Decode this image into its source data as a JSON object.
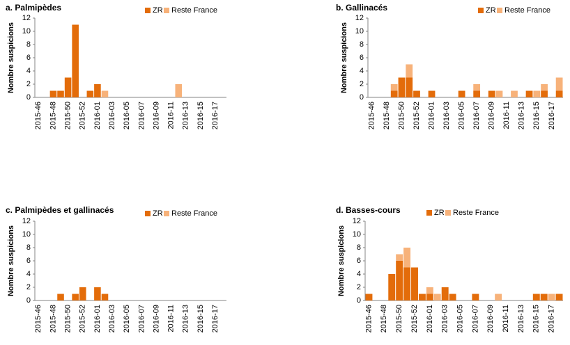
{
  "chart_data": [
    {
      "type": "bar",
      "stacked": true,
      "title": "a. Palmipèdes",
      "y_label": "Nombre suspicions",
      "categories": [
        "2015-46",
        null,
        "2015-48",
        null,
        "2015-50",
        null,
        "2015-52",
        null,
        "2016-01",
        null,
        "2016-03",
        null,
        "2016-05",
        null,
        "2016-07",
        null,
        "2016-09",
        null,
        "2016-11",
        null,
        "2016-13",
        null,
        "2016-15",
        null,
        "2016-17",
        null
      ],
      "series": [
        {
          "name": "ZR",
          "color": "#e36c0a",
          "values": [
            0,
            0,
            1,
            1,
            3,
            11,
            0,
            1,
            2,
            0,
            0,
            0,
            0,
            0,
            0,
            0,
            0,
            0,
            0,
            0,
            0,
            0,
            0,
            0,
            0,
            0
          ]
        },
        {
          "name": "Reste France",
          "color": "#f7b27a",
          "values": [
            0,
            0,
            0,
            0,
            0,
            0,
            0,
            0,
            0,
            1,
            0,
            0,
            0,
            0,
            0,
            0,
            0,
            0,
            0,
            2,
            0,
            0,
            0,
            0,
            0,
            0
          ]
        }
      ],
      "ylim": [
        0,
        12
      ],
      "yticks": [
        0,
        2,
        4,
        6,
        8,
        10,
        12
      ]
    },
    {
      "type": "bar",
      "stacked": true,
      "title": "b. Gallinacés",
      "y_label": "Nombre suspicions",
      "categories": [
        "2015-46",
        null,
        "2015-48",
        null,
        "2015-50",
        null,
        "2015-52",
        null,
        "2016-01",
        null,
        "2016-03",
        null,
        "2016-05",
        null,
        "2016-07",
        null,
        "2016-09",
        null,
        "2016-11",
        null,
        "2016-13",
        null,
        "2016-15",
        null,
        "2016-17",
        null
      ],
      "series": [
        {
          "name": "ZR",
          "color": "#e36c0a",
          "values": [
            0,
            0,
            0,
            1,
            3,
            3,
            1,
            0,
            1,
            0,
            0,
            0,
            1,
            0,
            1,
            0,
            1,
            0,
            0,
            0,
            0,
            1,
            0,
            1,
            0,
            1
          ]
        },
        {
          "name": "Reste France",
          "color": "#f7b27a",
          "values": [
            0,
            0,
            0,
            1,
            0,
            2,
            0,
            0,
            0,
            0,
            0,
            0,
            0,
            0,
            1,
            0,
            0,
            1,
            0,
            1,
            0,
            0,
            1,
            1,
            0,
            2
          ]
        }
      ],
      "ylim": [
        0,
        12
      ],
      "yticks": [
        0,
        2,
        4,
        6,
        8,
        10,
        12
      ]
    },
    {
      "type": "bar",
      "stacked": true,
      "title": "c. Palmipèdes et gallinacés",
      "y_label": "Nombre suspicions",
      "categories": [
        "2015-46",
        null,
        "2015-48",
        null,
        "2015-50",
        null,
        "2015-52",
        null,
        "2016-01",
        null,
        "2016-03",
        null,
        "2016-05",
        null,
        "2016-07",
        null,
        "2016-09",
        null,
        "2016-11",
        null,
        "2016-13",
        null,
        "2016-15",
        null,
        "2016-17",
        null
      ],
      "series": [
        {
          "name": "ZR",
          "color": "#e36c0a",
          "values": [
            0,
            0,
            0,
            1,
            0,
            1,
            2,
            0,
            2,
            1,
            0,
            0,
            0,
            0,
            0,
            0,
            0,
            0,
            0,
            0,
            0,
            0,
            0,
            0,
            0,
            0
          ]
        },
        {
          "name": "Reste France",
          "color": "#f7b27a",
          "values": [
            0,
            0,
            0,
            0,
            0,
            0,
            0,
            0,
            0,
            0,
            0,
            0,
            0,
            0,
            0,
            0,
            0,
            0,
            0,
            0,
            0,
            0,
            0,
            0,
            0,
            0
          ]
        }
      ],
      "ylim": [
        0,
        12
      ],
      "yticks": [
        0,
        2,
        4,
        6,
        8,
        10,
        12
      ]
    },
    {
      "type": "bar",
      "stacked": true,
      "title": "d. Basses-cours",
      "y_label": "Nombre suspicions",
      "categories": [
        "2015-46",
        null,
        "2015-48",
        null,
        "2015-50",
        null,
        "2015-52",
        null,
        "2016-01",
        null,
        "2016-03",
        null,
        "2016-05",
        null,
        "2016-07",
        null,
        "2016-09",
        null,
        "2016-11",
        null,
        "2016-13",
        null,
        "2016-15",
        null,
        "2016-17",
        null
      ],
      "series": [
        {
          "name": "ZR",
          "color": "#e36c0a",
          "values": [
            1,
            0,
            0,
            4,
            6,
            5,
            5,
            1,
            1,
            0,
            2,
            1,
            0,
            0,
            1,
            0,
            0,
            0,
            0,
            0,
            0,
            0,
            1,
            1,
            0,
            1
          ]
        },
        {
          "name": "Reste France",
          "color": "#f7b27a",
          "values": [
            0,
            0,
            0,
            0,
            1,
            3,
            0,
            0,
            1,
            1,
            0,
            0,
            0,
            0,
            0,
            0,
            0,
            1,
            0,
            0,
            0,
            0,
            0,
            0,
            1,
            0
          ]
        }
      ],
      "ylim": [
        0,
        12
      ],
      "yticks": [
        0,
        2,
        4,
        6,
        8,
        10,
        12
      ]
    }
  ]
}
